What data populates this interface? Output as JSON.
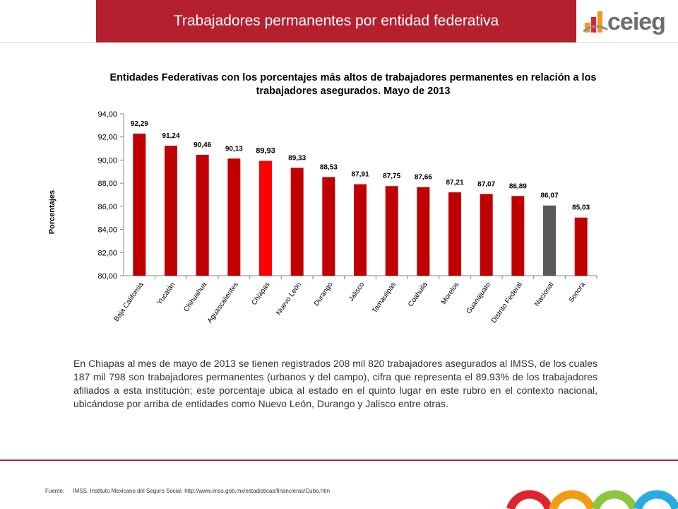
{
  "header": {
    "title": "Trabajadores permanentes por entidad federativa"
  },
  "logo": {
    "text": "ceieg"
  },
  "chart_data": {
    "type": "bar",
    "title": "Entidades Federativas con los porcentajes más altos de trabajadores permanentes en relación a los trabajadores asegurados. Mayo de 2013",
    "xlabel": "",
    "ylabel": "Porcentajes",
    "ylim": [
      80,
      94
    ],
    "yticks": [
      "94,00",
      "92,00",
      "90,00",
      "88,00",
      "86,00",
      "84,00",
      "82,00",
      "80,00"
    ],
    "ytick_values": [
      94,
      92,
      90,
      88,
      86,
      84,
      82,
      80
    ],
    "grid": false,
    "legend": "none",
    "categories": [
      "Baja California",
      "Yucatán",
      "Chihuahua",
      "Aguascalientes",
      "Chiapas",
      "Nuevo León",
      "Durango",
      "Jalisco",
      "Tamaulipas",
      "Coahuila",
      "Morelos",
      "Guanajuato",
      "Distrito Federal",
      "Nacional",
      "Sonora"
    ],
    "values": [
      92.29,
      91.24,
      90.46,
      90.13,
      89.93,
      89.33,
      88.53,
      87.91,
      87.75,
      87.66,
      87.21,
      87.07,
      86.89,
      86.07,
      85.03
    ],
    "labels": [
      "92,29",
      "91,24",
      "90,46",
      "90,13",
      "89,93",
      "89,33",
      "88,53",
      "87,91",
      "87,75",
      "87,66",
      "87,21",
      "87,07",
      "86,89",
      "86,07",
      "85,03"
    ],
    "colors": {
      "default": "#c00000",
      "Chiapas": "#ff0000",
      "Nacional": "#595959"
    }
  },
  "body": {
    "text": "En Chiapas al mes de mayo de 2013 se tienen registrados 208 mil 820 trabajadores asegurados al IMSS, de los cuales 187 mil 798 son trabajadores permanentes (urbanos y del campo), cifra que representa el 89.93% de los trabajadores afiliados a esta institución; este porcentaje ubica al estado en el quinto lugar en este rubro en el contexto nacional, ubicándose por arriba de entidades como Nuevo León, Durango y Jalisco entre otras."
  },
  "footer": {
    "source_label": "Fuente:",
    "source_text": "IMSS. Instituto Mexicano del Seguro Social. http://www.imss.gob.mx/estadisticas/financieras/Cubo.htm"
  },
  "colors": {
    "accent": "#b5202e",
    "brand_red": "#e0242f",
    "brand_orange": "#f39c12",
    "brand_green": "#8cc63f",
    "brand_blue": "#29abe2"
  }
}
